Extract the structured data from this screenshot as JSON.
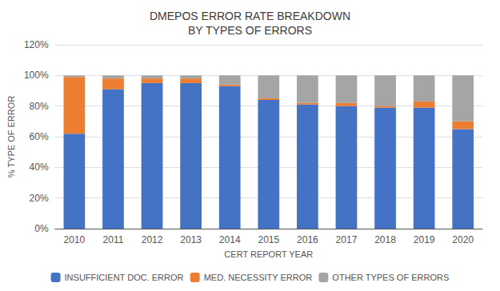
{
  "chart_data": {
    "type": "bar",
    "title": "DMEPOS ERROR RATE BREAKDOWN\nBY TYPES OF ERRORS",
    "xlabel": "CERT REPORT YEAR",
    "ylabel": "% TYPE OF ERROR",
    "categories": [
      "2010",
      "2011",
      "2012",
      "2013",
      "2014",
      "2015",
      "2016",
      "2017",
      "2018",
      "2019",
      "2020"
    ],
    "series": [
      {
        "name": "INSUFFICIENT DOC. ERROR",
        "color": "#4472C4",
        "values": [
          62,
          91,
          95,
          95,
          93,
          84,
          81,
          80,
          79,
          79,
          65
        ]
      },
      {
        "name": "MED. NECESSITY ERROR",
        "color": "#ED7D31",
        "values": [
          37,
          7,
          3,
          3,
          1,
          1,
          1,
          2,
          1,
          4,
          5
        ]
      },
      {
        "name": "OTHER TYPES OF ERRORS",
        "color": "#A5A5A5",
        "values": [
          1,
          2,
          2,
          2,
          6,
          15,
          18,
          18,
          20,
          17,
          30
        ]
      }
    ],
    "stacked": true,
    "ylim": [
      0,
      120
    ],
    "yticks": [
      {
        "value": 0,
        "label": "0%"
      },
      {
        "value": 20,
        "label": "20%"
      },
      {
        "value": 40,
        "label": "40%"
      },
      {
        "value": 60,
        "label": "60%"
      },
      {
        "value": 80,
        "label": "80%"
      },
      {
        "value": 100,
        "label": "100%"
      },
      {
        "value": 120,
        "label": "120%"
      }
    ],
    "grid": true,
    "legend": "bottom"
  }
}
